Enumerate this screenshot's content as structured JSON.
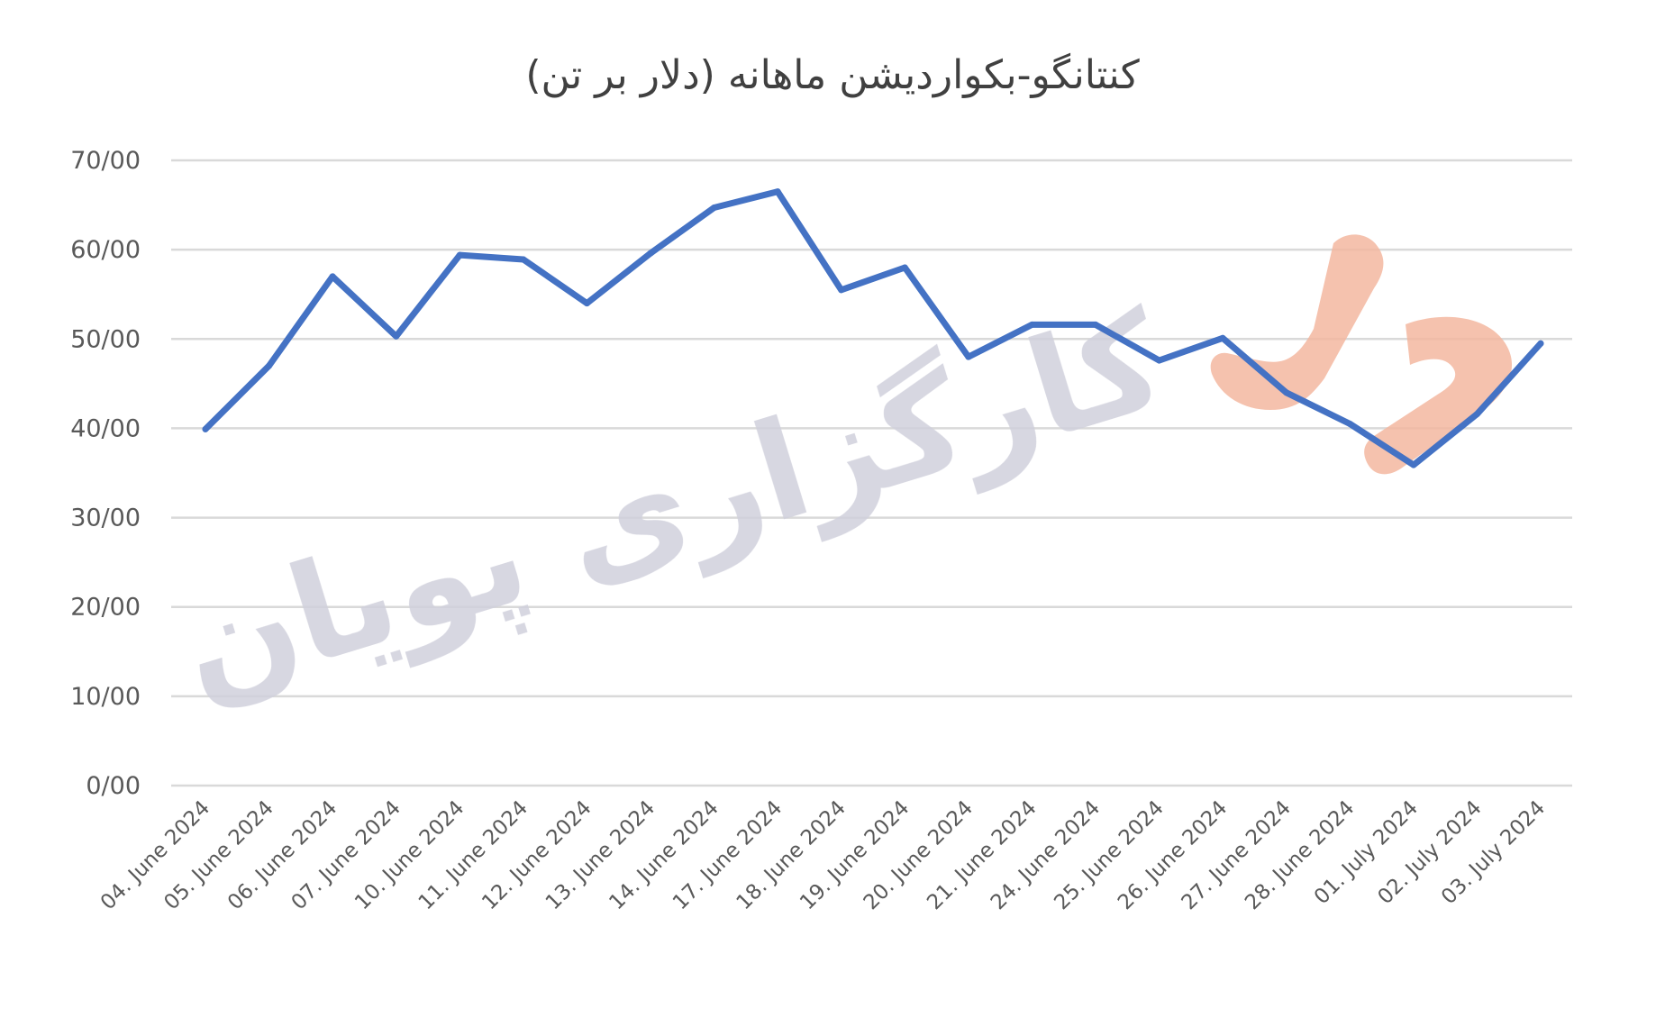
{
  "chart_data": {
    "type": "line",
    "title": "کنتانگو-بکواردیشن ماهانه (دلار بر تن)",
    "xlabel": "",
    "ylabel": "",
    "ylim": [
      0,
      70
    ],
    "yticks": [
      "0/00",
      "10/00",
      "20/00",
      "30/00",
      "40/00",
      "50/00",
      "60/00",
      "70/00"
    ],
    "grid": true,
    "legend": "none",
    "categories": [
      "04. June 2024",
      "05. June 2024",
      "06. June 2024",
      "07. June 2024",
      "10. June 2024",
      "11. June 2024",
      "12. June 2024",
      "13. June 2024",
      "14. June 2024",
      "17. June 2024",
      "18. June 2024",
      "19. June 2024",
      "20. June 2024",
      "21. June 2024",
      "24. June 2024",
      "25. June 2024",
      "26. June 2024",
      "27. June 2024",
      "28. June 2024",
      "01. July 2024",
      "02. July 2024",
      "03. July 2024"
    ],
    "series": [
      {
        "color": "#4472c4",
        "values": [
          39.9,
          47.0,
          57.0,
          50.3,
          59.4,
          58.9,
          54.0,
          59.6,
          64.7,
          66.5,
          55.5,
          58.0,
          48.0,
          51.6,
          51.6,
          47.6,
          50.1,
          44.0,
          40.5,
          35.9,
          41.6,
          49.5
        ]
      }
    ]
  },
  "watermark": {
    "text": "کارگزاری پویان",
    "logo_color": "#f4b8a0",
    "text_color": "#d0d0dc"
  }
}
